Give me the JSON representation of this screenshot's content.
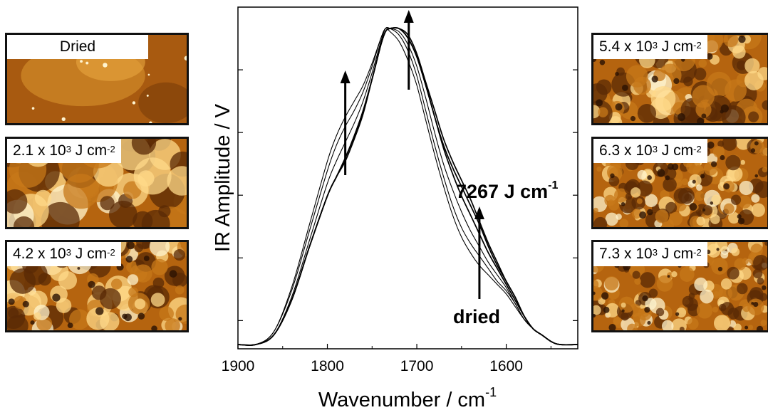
{
  "chart_data": {
    "type": "line",
    "xlabel_base": "Wavenumber / cm",
    "xlabel_exp": "-1",
    "ylabel": "IR Amplitude / V",
    "x_ticks": [
      "1900",
      "1800",
      "1700",
      "1600"
    ],
    "xlim": [
      1900,
      1520
    ],
    "x_reversed": true,
    "ylim": [
      0,
      1
    ],
    "y_tick_labels": false,
    "grid": false,
    "annotations": {
      "top": "7267 J cm",
      "top_exp": "-1",
      "bottom": "dried"
    },
    "x": [
      1900,
      1880,
      1860,
      1840,
      1820,
      1800,
      1790,
      1780,
      1770,
      1760,
      1750,
      1740,
      1735,
      1730,
      1720,
      1710,
      1700,
      1690,
      1680,
      1670,
      1660,
      1650,
      1640,
      1630,
      1620,
      1610,
      1600,
      1590,
      1580,
      1570,
      1560,
      1550,
      1540,
      1520
    ],
    "series": [
      {
        "values": [
          0.0,
          0.0,
          0.04,
          0.18,
          0.38,
          0.58,
          0.66,
          0.72,
          0.77,
          0.82,
          0.89,
          0.97,
          1.0,
          0.99,
          0.96,
          0.9,
          0.82,
          0.71,
          0.6,
          0.5,
          0.41,
          0.34,
          0.29,
          0.25,
          0.22,
          0.19,
          0.16,
          0.12,
          0.08,
          0.05,
          0.03,
          0.01,
          0.0,
          0.0
        ]
      },
      {
        "values": [
          0.0,
          0.0,
          0.04,
          0.17,
          0.36,
          0.55,
          0.63,
          0.69,
          0.74,
          0.8,
          0.88,
          0.97,
          1.0,
          1.0,
          0.98,
          0.93,
          0.85,
          0.74,
          0.63,
          0.53,
          0.44,
          0.37,
          0.32,
          0.28,
          0.24,
          0.2,
          0.17,
          0.13,
          0.08,
          0.05,
          0.03,
          0.01,
          0.0,
          0.0
        ]
      },
      {
        "values": [
          0.0,
          0.0,
          0.03,
          0.15,
          0.33,
          0.51,
          0.58,
          0.64,
          0.7,
          0.77,
          0.86,
          0.96,
          1.0,
          1.0,
          0.99,
          0.95,
          0.88,
          0.78,
          0.67,
          0.57,
          0.49,
          0.42,
          0.36,
          0.31,
          0.26,
          0.22,
          0.18,
          0.13,
          0.08,
          0.05,
          0.03,
          0.01,
          0.0,
          0.0
        ]
      },
      {
        "values": [
          0.0,
          0.0,
          0.03,
          0.14,
          0.31,
          0.47,
          0.53,
          0.59,
          0.66,
          0.74,
          0.84,
          0.95,
          0.99,
          1.0,
          1.0,
          0.97,
          0.91,
          0.82,
          0.72,
          0.62,
          0.54,
          0.47,
          0.41,
          0.35,
          0.29,
          0.24,
          0.19,
          0.14,
          0.09,
          0.05,
          0.03,
          0.01,
          0.0,
          0.0
        ]
      },
      {
        "values": [
          0.0,
          0.0,
          0.03,
          0.14,
          0.31,
          0.47,
          0.53,
          0.59,
          0.66,
          0.74,
          0.84,
          0.95,
          0.99,
          1.0,
          1.0,
          0.97,
          0.91,
          0.82,
          0.72,
          0.63,
          0.56,
          0.5,
          0.44,
          0.38,
          0.31,
          0.25,
          0.2,
          0.15,
          0.09,
          0.05,
          0.03,
          0.01,
          0.0,
          0.0
        ]
      },
      {
        "values": [
          0.0,
          0.0,
          0.03,
          0.14,
          0.31,
          0.47,
          0.53,
          0.58,
          0.65,
          0.73,
          0.84,
          0.95,
          0.99,
          1.0,
          1.0,
          0.98,
          0.92,
          0.83,
          0.74,
          0.65,
          0.58,
          0.52,
          0.46,
          0.39,
          0.32,
          0.26,
          0.2,
          0.15,
          0.09,
          0.05,
          0.03,
          0.01,
          0.0,
          0.0
        ]
      }
    ]
  },
  "images": {
    "left": [
      {
        "base": "Dried",
        "exp": "",
        "unit": ""
      },
      {
        "base": "2.1 x 10",
        "exp": "3",
        "unit": " J cm",
        "unit_exp": "-2"
      },
      {
        "base": "4.2 x 10",
        "exp": "3",
        "unit": " J cm",
        "unit_exp": "-2"
      }
    ],
    "right": [
      {
        "base": "5.4 x 10",
        "exp": "3",
        "unit": " J cm",
        "unit_exp": "-2"
      },
      {
        "base": "6.3 x 10",
        "exp": "3",
        "unit": " J cm",
        "unit_exp": "-2"
      },
      {
        "base": "7.3 x 10",
        "exp": "3",
        "unit": " J cm",
        "unit_exp": "-2"
      }
    ]
  },
  "colors": {
    "afm_dark": "#5a2a06",
    "afm_mid": "#b5640f",
    "afm_light": "#ffd98a",
    "afm_bright": "#fff4cf"
  }
}
